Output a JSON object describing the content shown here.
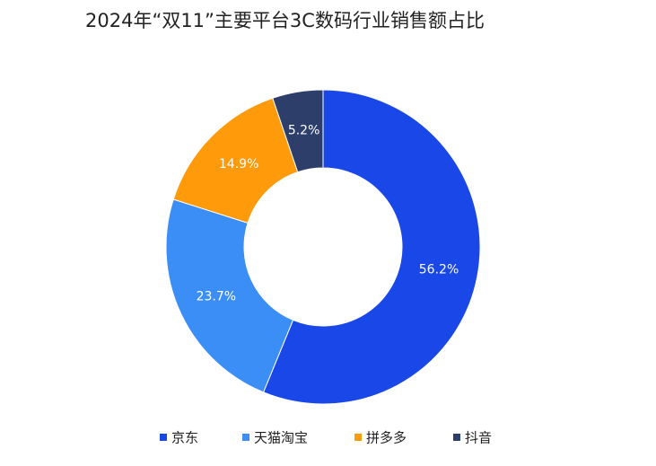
{
  "chart_data": {
    "type": "pie",
    "title": "2024年“双11”主要平台3C数码行业销售额占比",
    "categories": [
      "京东",
      "天猫淘宝",
      "拼多多",
      "抖音"
    ],
    "values": [
      56.2,
      23.7,
      14.9,
      5.2
    ],
    "value_labels": [
      "56.2%",
      "23.7%",
      "14.9%",
      "5.2%"
    ],
    "colors": [
      "#1a47e8",
      "#3a8ef5",
      "#ff9a0a",
      "#2d3e6b"
    ],
    "legend": "bottom"
  }
}
